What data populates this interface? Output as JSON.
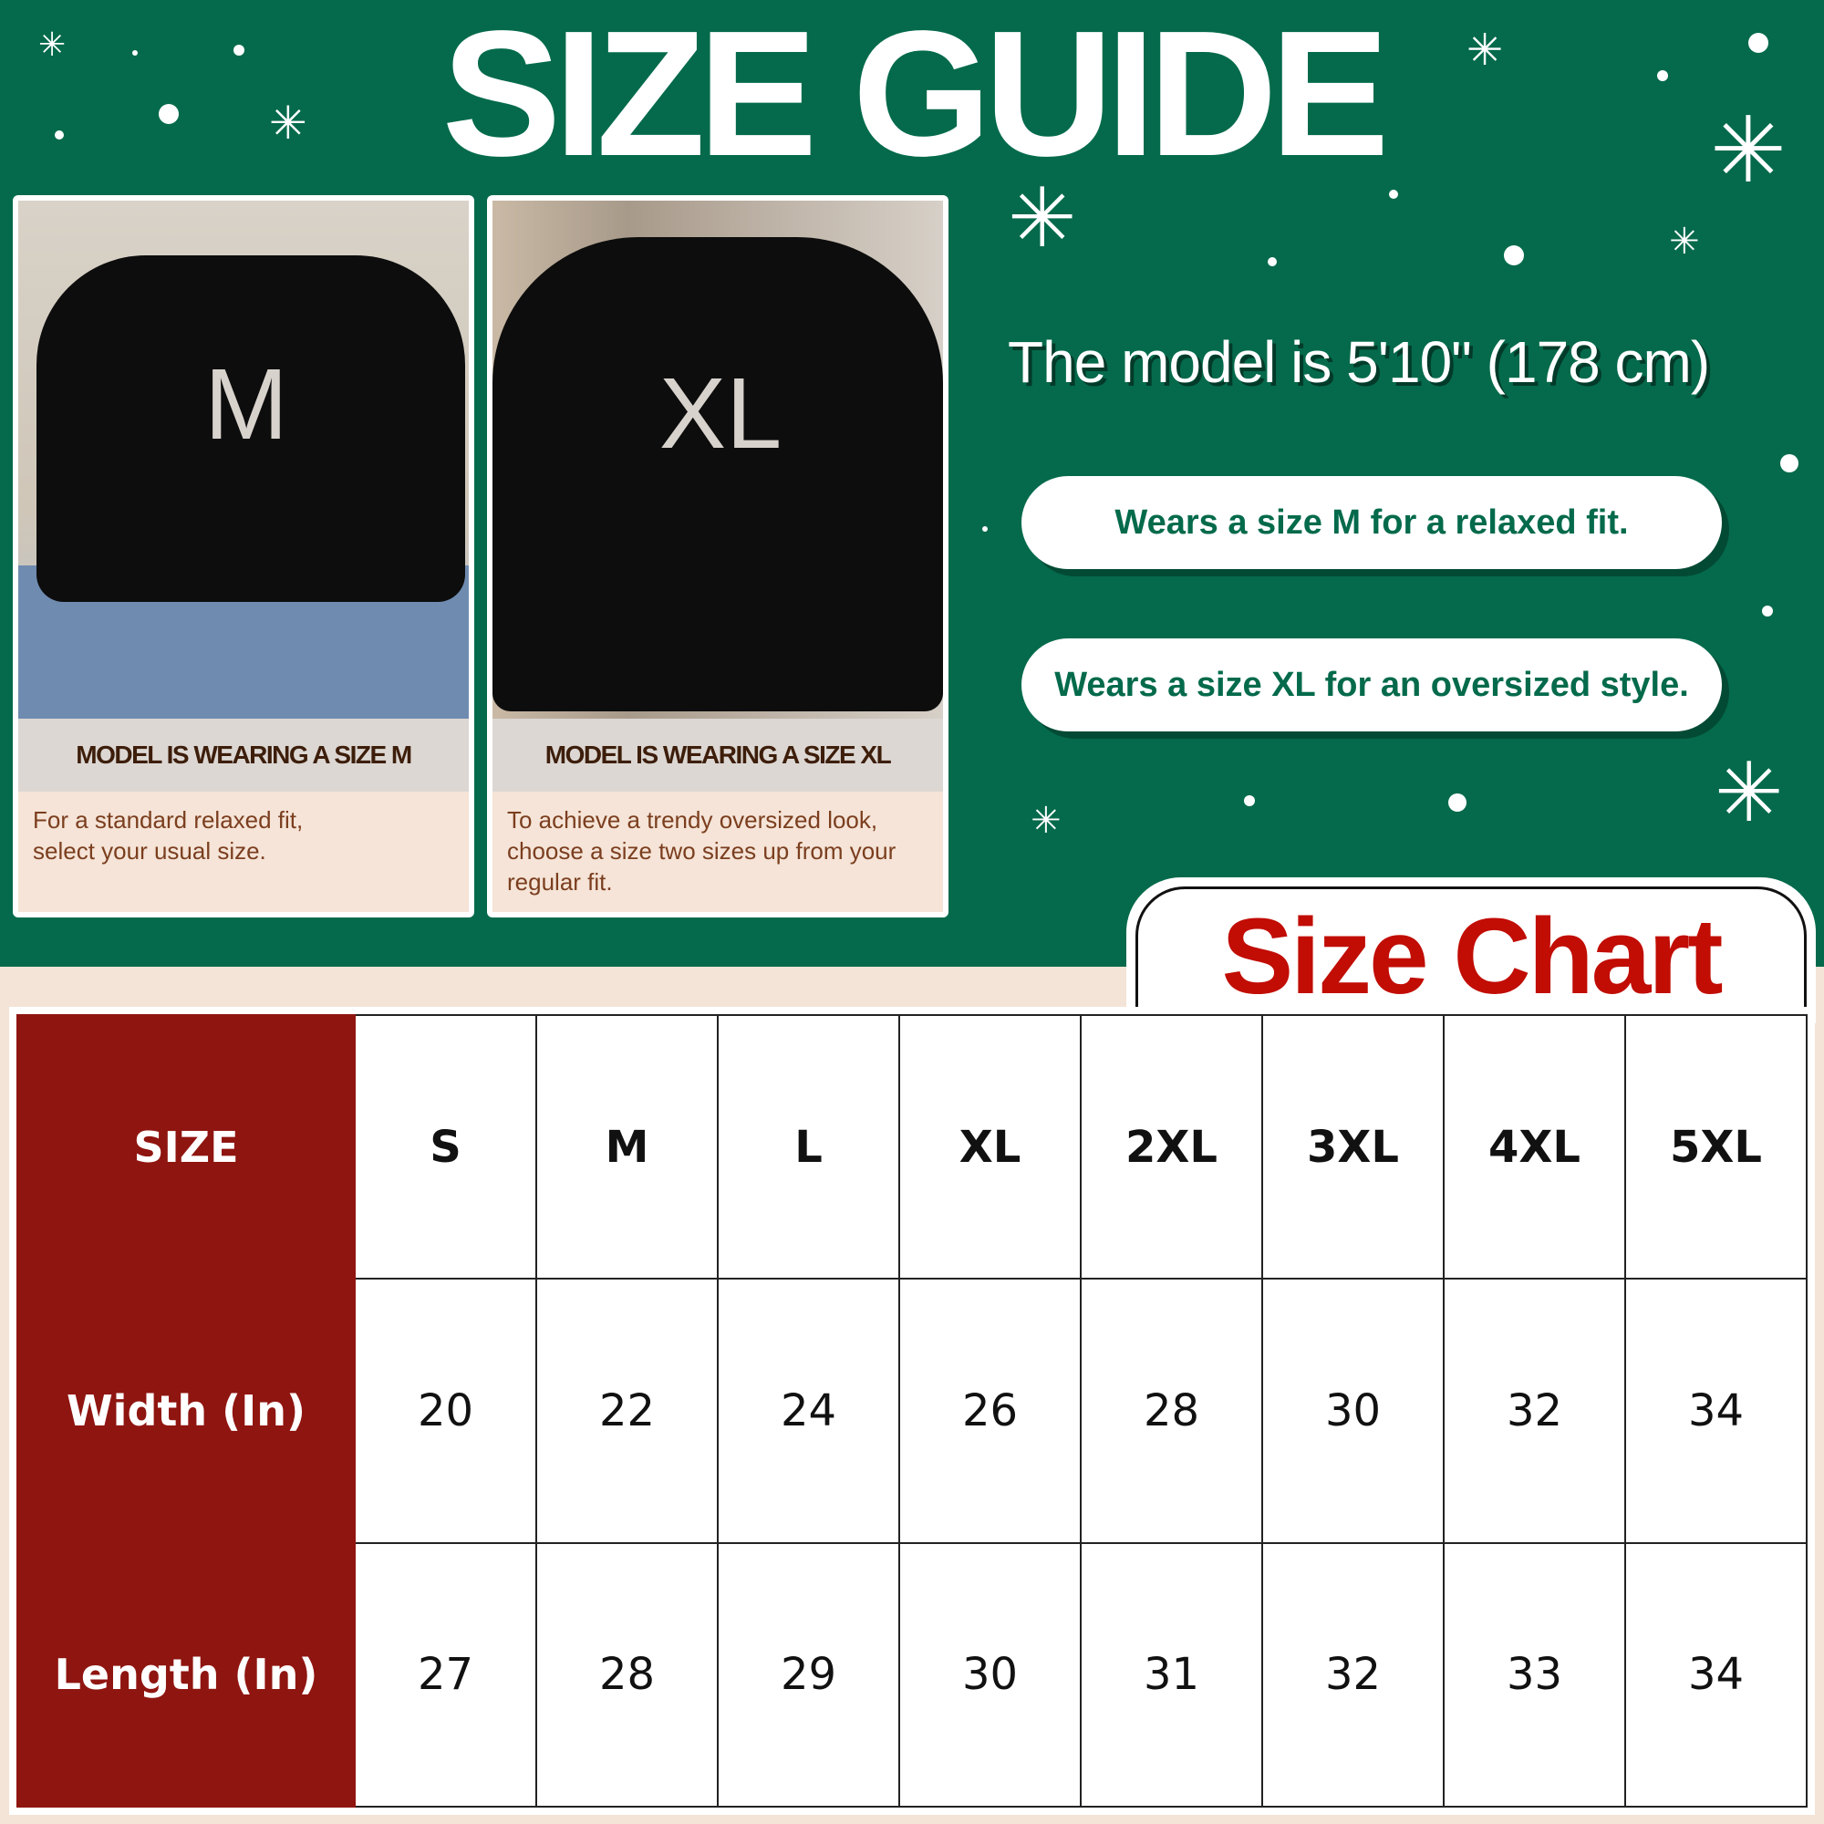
{
  "title": "SIZE GUIDE",
  "colors": {
    "green": "#046a4b",
    "red_header": "#8f1510",
    "chart_title": "#c10d04",
    "cream": "#f3e4d7"
  },
  "cards": [
    {
      "shirt_letter": "M",
      "label": "MODEL IS WEARING A SIZE M",
      "description": "For a standard relaxed fit, select your usual size."
    },
    {
      "shirt_letter": "XL",
      "label": "MODEL IS WEARING A SIZE XL",
      "description": "To achieve a trendy oversized look, choose a size two sizes up from your regular fit."
    }
  ],
  "model_height": "The model is 5'10\" (178 cm)",
  "pills": [
    "Wears a size M for a relaxed fit.",
    "Wears a size XL for an oversized style."
  ],
  "chart_title": "Size Chart",
  "table": {
    "rows": [
      {
        "label": "SIZE",
        "values": [
          "S",
          "M",
          "L",
          "XL",
          "2XL",
          "3XL",
          "4XL",
          "5XL"
        ]
      },
      {
        "label": "Width (In)",
        "values": [
          "20",
          "22",
          "24",
          "26",
          "28",
          "30",
          "32",
          "34"
        ]
      },
      {
        "label": "Length (In)",
        "values": [
          "27",
          "28",
          "29",
          "30",
          "31",
          "32",
          "33",
          "34"
        ]
      }
    ]
  }
}
